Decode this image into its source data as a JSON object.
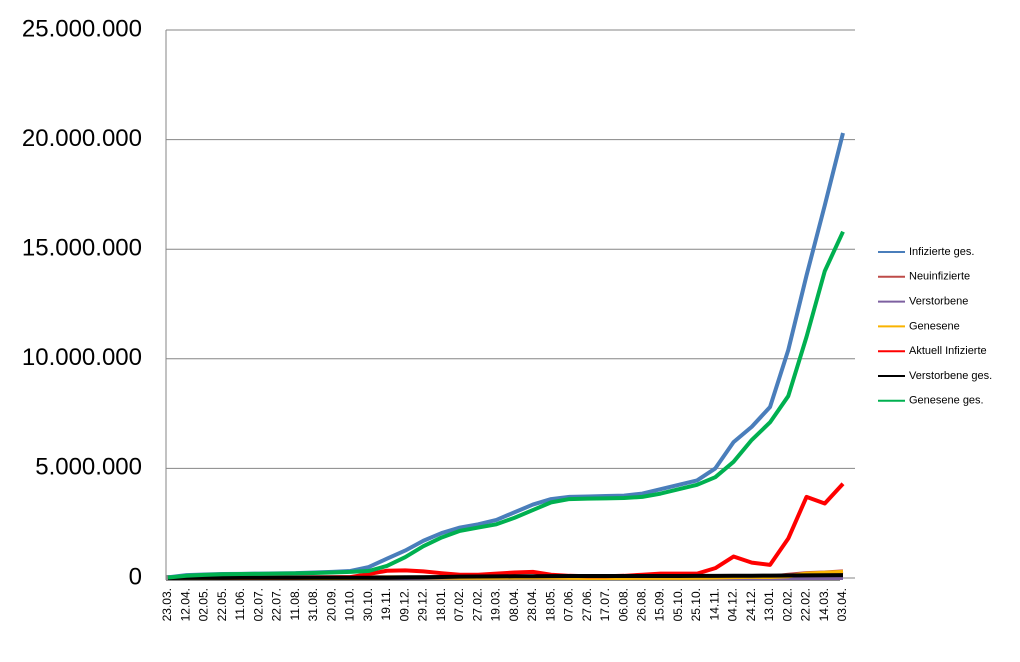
{
  "chart_data": {
    "type": "line",
    "categories": [
      "23.03.",
      "12.04.",
      "02.05.",
      "22.05.",
      "11.06.",
      "02.07.",
      "22.07.",
      "11.08.",
      "31.08.",
      "20.09.",
      "10.10.",
      "30.10.",
      "19.11.",
      "09.12.",
      "29.12.",
      "18.01.",
      "07.02.",
      "27.02.",
      "19.03.",
      "08.04.",
      "28.04.",
      "18.05.",
      "07.06.",
      "27.06.",
      "17.07.",
      "06.08.",
      "26.08.",
      "15.09.",
      "05.10.",
      "25.10.",
      "14.11.",
      "04.12.",
      "24.12.",
      "13.01.",
      "02.02.",
      "22.02.",
      "14.03.",
      "03.04."
    ],
    "series": [
      {
        "name": "Infizierte ges.",
        "color": "#4a7ebb",
        "values": [
          30000,
          130000,
          160000,
          180000,
          190000,
          200000,
          210000,
          220000,
          250000,
          280000,
          320000,
          500000,
          880000,
          1250000,
          1700000,
          2050000,
          2300000,
          2450000,
          2650000,
          3000000,
          3350000,
          3600000,
          3700000,
          3720000,
          3740000,
          3760000,
          3850000,
          4050000,
          4250000,
          4450000,
          5000000,
          6200000,
          6900000,
          7800000,
          10400000,
          13800000,
          17000000,
          20300000
        ]
      },
      {
        "name": "Neuinfizierte",
        "color": "#be4b48",
        "values": [
          3000,
          2000,
          1000,
          500,
          300,
          400,
          500,
          1000,
          1500,
          2000,
          4000,
          15000,
          20000,
          25000,
          20000,
          15000,
          10000,
          8000,
          15000,
          20000,
          18000,
          8000,
          3000,
          800,
          1000,
          3000,
          8000,
          10000,
          8000,
          15000,
          40000,
          60000,
          40000,
          60000,
          150000,
          220000,
          250000,
          300000
        ]
      },
      {
        "name": "Verstorbene",
        "color": "#7d60a0",
        "values": [
          100,
          200,
          100,
          50,
          20,
          10,
          5,
          5,
          5,
          10,
          20,
          100,
          250,
          400,
          600,
          700,
          500,
          300,
          200,
          250,
          250,
          200,
          100,
          50,
          20,
          20,
          30,
          60,
          80,
          100,
          200,
          400,
          400,
          300,
          150,
          200,
          250,
          300
        ]
      },
      {
        "name": "Genesene",
        "color": "#f9b300",
        "values": [
          1000,
          4000,
          2000,
          1000,
          500,
          400,
          400,
          600,
          1200,
          1500,
          2500,
          6000,
          15000,
          20000,
          25000,
          20000,
          12000,
          10000,
          12000,
          18000,
          20000,
          15000,
          6000,
          1000,
          700,
          1500,
          5000,
          8000,
          8000,
          10000,
          25000,
          40000,
          50000,
          45000,
          80000,
          200000,
          240000,
          280000
        ]
      },
      {
        "name": "Aktuell Infizierte",
        "color": "#ff0000",
        "values": [
          10000,
          30000,
          20000,
          10000,
          10000,
          10000,
          10000,
          10000,
          20000,
          30000,
          40000,
          180000,
          330000,
          350000,
          300000,
          220000,
          150000,
          150000,
          200000,
          250000,
          280000,
          150000,
          100000,
          80000,
          80000,
          100000,
          150000,
          200000,
          200000,
          200000,
          450000,
          980000,
          700000,
          600000,
          1800000,
          3700000,
          3400000,
          4300000
        ]
      },
      {
        "name": "Verstorbene ges.",
        "color": "#000000",
        "values": [
          0,
          5000,
          7000,
          8000,
          9000,
          9000,
          9000,
          9000,
          9000,
          10000,
          10000,
          11000,
          14000,
          20000,
          30000,
          45000,
          60000,
          70000,
          75000,
          78000,
          80000,
          85000,
          90000,
          90000,
          91000,
          91000,
          92000,
          93000,
          94000,
          95000,
          98000,
          100000,
          105000,
          110000,
          115000,
          120000,
          125000,
          130000
        ]
      },
      {
        "name": "Genesene ges.",
        "color": "#00b050",
        "values": [
          20000,
          100000,
          140000,
          170000,
          180000,
          190000,
          200000,
          210000,
          230000,
          250000,
          280000,
          320000,
          550000,
          950000,
          1450000,
          1850000,
          2150000,
          2300000,
          2450000,
          2750000,
          3100000,
          3450000,
          3600000,
          3620000,
          3630000,
          3650000,
          3700000,
          3850000,
          4050000,
          4250000,
          4600000,
          5300000,
          6300000,
          7100000,
          8300000,
          11000000,
          14000000,
          15800000
        ]
      }
    ],
    "ylim": [
      0,
      25000000
    ],
    "yticks": [
      0,
      {
        "value": 5000000,
        "label": "5.000.000"
      },
      {
        "value": 10000000,
        "label": "10.000.000"
      },
      {
        "value": 15000000,
        "label": "15.000.000"
      },
      {
        "value": 20000000,
        "label": "20.000.000"
      },
      {
        "value": 25000000,
        "label": "25.000.000"
      }
    ],
    "grid": true,
    "legend": "right"
  }
}
